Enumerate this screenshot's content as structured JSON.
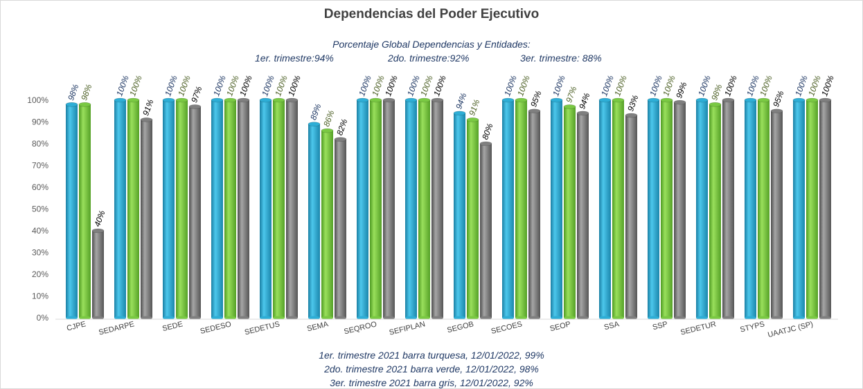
{
  "title": "Dependencias del Poder Ejecutivo",
  "subtitle": "Porcentaje Global  Dependencias y Entidades:",
  "quarters_summary": [
    "1er. trimestre:94%",
    "2do. trimestre:92%",
    "3er. trimestre: 88%"
  ],
  "footnotes": [
    "1er. trimestre  2021 barra turquesa,  12/01/2022, 99%",
    "2do. trimestre  2021 barra verde,  12/01/2022, 98%",
    "3er. trimestre 2021 barra gris, 12/01/2022, 92%"
  ],
  "chart_data": {
    "type": "bar",
    "title": "Dependencias del Poder Ejecutivo",
    "xlabel": "",
    "ylabel": "",
    "ylim": [
      0,
      100
    ],
    "yticks": [
      "0%",
      "10%",
      "20%",
      "30%",
      "40%",
      "50%",
      "60%",
      "70%",
      "80%",
      "90%",
      "100%"
    ],
    "grid": false,
    "categories": [
      "CJPE",
      "SEDARPE",
      "SEDE",
      "SEDESO",
      "SEDETUS",
      "SEMA",
      "SEQROO",
      "SEFIPLAN",
      "SEGOB",
      "SECOES",
      "SEOP",
      "SSA",
      "SSP",
      "SEDETUR",
      "STYPS",
      "UAATJC (SP)"
    ],
    "series": [
      {
        "color": "#2eaed6",
        "label_color": "#1f3864",
        "values": [
          98,
          100,
          100,
          100,
          100,
          89,
          100,
          100,
          94,
          100,
          100,
          100,
          100,
          100,
          100,
          100
        ]
      },
      {
        "color": "#7ac943",
        "label_color": "#4f6228",
        "values": [
          98,
          100,
          100,
          100,
          100,
          86,
          100,
          100,
          91,
          100,
          97,
          100,
          100,
          98,
          100,
          100
        ]
      },
      {
        "color": "#7f7f7f",
        "label_color": "#000000",
        "values": [
          40,
          91,
          97,
          100,
          100,
          82,
          100,
          100,
          80,
          95,
          94,
          93,
          99,
          100,
          95,
          100
        ]
      }
    ]
  }
}
